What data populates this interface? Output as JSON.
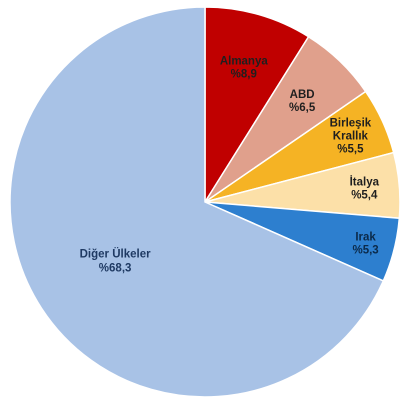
{
  "chart_data": {
    "type": "pie",
    "title": "",
    "start_angle_deg": 0,
    "direction": "clockwise",
    "slices": [
      {
        "name": "Almanya",
        "value": 8.9,
        "label": "%8,9",
        "color": "#c00000",
        "text_color": "#1f1f1f"
      },
      {
        "name": "ABD",
        "value": 6.5,
        "label": "%6,5",
        "color": "#e0a08c",
        "text_color": "#1f1f1f"
      },
      {
        "name": "Birleşik Krallık",
        "label_lines": [
          "Birleşik",
          "Krallık"
        ],
        "value": 5.5,
        "label": "%5,5",
        "color": "#f5b324",
        "text_color": "#1f1f1f"
      },
      {
        "name": "İtalya",
        "value": 5.4,
        "label": "%5,4",
        "color": "#fce0a8",
        "text_color": "#1f1f1f"
      },
      {
        "name": "Irak",
        "value": 5.3,
        "label": "%5,3",
        "color": "#2d7fcf",
        "text_color": "#0b2a4a"
      },
      {
        "name": "Diğer Ülkeler",
        "value": 68.3,
        "label": "%68,3",
        "color": "#a8c2e6",
        "text_color": "#1f3a63"
      }
    ]
  }
}
